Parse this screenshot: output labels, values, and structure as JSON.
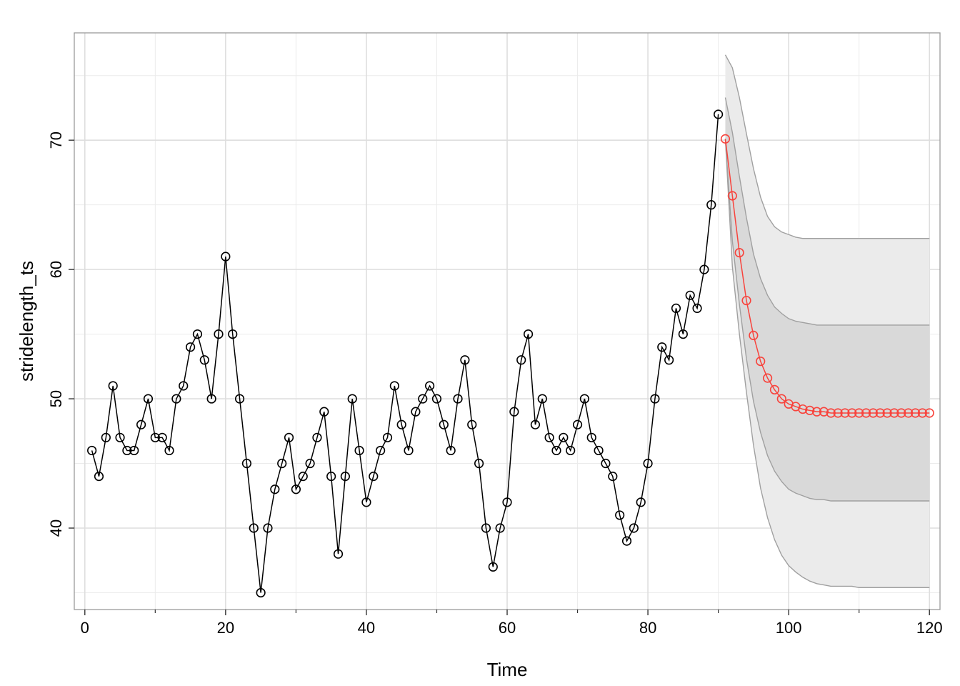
{
  "chart_data": {
    "type": "line",
    "xlabel": "Time",
    "ylabel": "stridelength_ts",
    "xlim": [
      -1.5,
      121.5
    ],
    "ylim": [
      33.7,
      78.3
    ],
    "xticks": [
      0,
      20,
      40,
      60,
      80,
      100,
      120
    ],
    "xtick_labels": [
      "0",
      "20",
      "40",
      "60",
      "80",
      "100",
      "120"
    ],
    "yticks": [
      40,
      50,
      60,
      70
    ],
    "ytick_labels": [
      "40",
      "50",
      "60",
      "70"
    ],
    "grid": true,
    "series": [
      {
        "role": "observed",
        "color": "#000000",
        "x_start": 1,
        "values": [
          46,
          44,
          47,
          51,
          47,
          46,
          46,
          48,
          50,
          47,
          47,
          46,
          50,
          51,
          54,
          55,
          53,
          50,
          55,
          61,
          55,
          50,
          45,
          40,
          35,
          40,
          43,
          45,
          47,
          43,
          44,
          45,
          47,
          49,
          44,
          38,
          44,
          50,
          46,
          42,
          44,
          46,
          47,
          51,
          48,
          46,
          49,
          50,
          51,
          50,
          48,
          46,
          50,
          53,
          48,
          45,
          40,
          37,
          40,
          42,
          49,
          53,
          55,
          48,
          50,
          47,
          46,
          47,
          46,
          48,
          50,
          47,
          46,
          45,
          44,
          41,
          39,
          40,
          42,
          45,
          50,
          54,
          53,
          57,
          55,
          58,
          57,
          60,
          65,
          72
        ]
      },
      {
        "role": "forecast",
        "color": "#f8433c",
        "x_start": 91,
        "values": [
          70.1,
          65.7,
          61.3,
          57.6,
          54.9,
          52.9,
          51.6,
          50.7,
          50.0,
          49.6,
          49.4,
          49.2,
          49.1,
          49.0,
          49.0,
          48.9,
          48.9,
          48.9,
          48.9,
          48.9,
          48.9,
          48.9,
          48.9,
          48.9,
          48.9,
          48.9,
          48.9,
          48.9,
          48.9,
          48.9
        ]
      }
    ],
    "intervals": [
      {
        "level": "outer",
        "fill": "#ebebeb",
        "lower": [
          70.1,
          60.2,
          55.0,
          50.5,
          46.4,
          43.1,
          40.8,
          39.1,
          37.9,
          37.1,
          36.6,
          36.2,
          35.9,
          35.7,
          35.6,
          35.5,
          35.5,
          35.5,
          35.5,
          35.4,
          35.4,
          35.4,
          35.4,
          35.4,
          35.4,
          35.4,
          35.4,
          35.4,
          35.4,
          35.4
        ],
        "upper": [
          76.6,
          75.6,
          73.3,
          70.5,
          67.8,
          65.6,
          64.1,
          63.3,
          62.9,
          62.7,
          62.5,
          62.4,
          62.4,
          62.4,
          62.4,
          62.4,
          62.4,
          62.4,
          62.4,
          62.4,
          62.4,
          62.4,
          62.4,
          62.4,
          62.4,
          62.4,
          62.4,
          62.4,
          62.4,
          62.4
        ]
      },
      {
        "level": "inner",
        "fill": "#d9d9d9",
        "lower": [
          70.1,
          62.2,
          57.3,
          53.1,
          49.8,
          47.4,
          45.6,
          44.4,
          43.6,
          43.0,
          42.7,
          42.5,
          42.3,
          42.2,
          42.2,
          42.1,
          42.1,
          42.1,
          42.1,
          42.1,
          42.1,
          42.1,
          42.1,
          42.1,
          42.1,
          42.1,
          42.1,
          42.1,
          42.1,
          42.1
        ],
        "upper": [
          73.3,
          70.6,
          67.2,
          64.0,
          61.2,
          59.3,
          58.0,
          57.1,
          56.6,
          56.2,
          56.0,
          55.9,
          55.8,
          55.7,
          55.7,
          55.7,
          55.7,
          55.7,
          55.7,
          55.7,
          55.7,
          55.7,
          55.7,
          55.7,
          55.7,
          55.7,
          55.7,
          55.7,
          55.7,
          55.7
        ]
      }
    ]
  }
}
